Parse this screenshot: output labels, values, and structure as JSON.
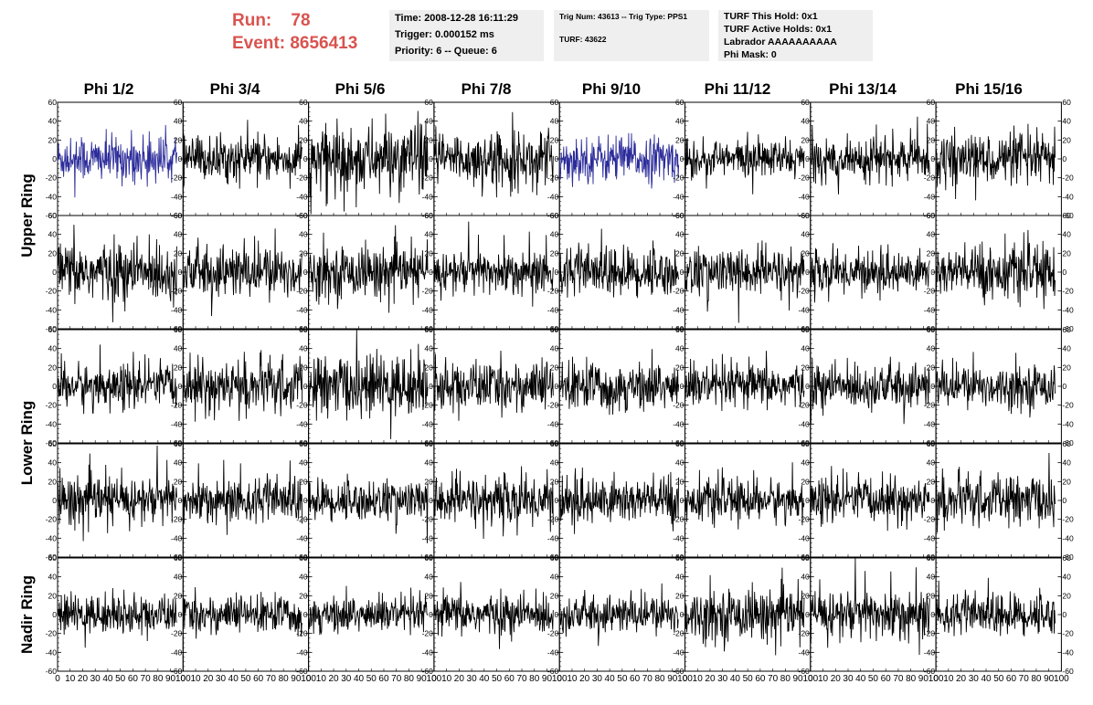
{
  "header": {
    "run_label": "Run:    78",
    "event_label": "Event: 8656413",
    "info1": [
      "Time: 2008-12-28 16:11:29",
      "Trigger: 0.000152 ms",
      "Priority: 6 -- Queue: 6"
    ],
    "info2_line1": "Trig Num: 43613 -- Trig Type: PPS1",
    "info2_line2": "TURF: 43622",
    "info3": [
      "TURF This Hold: 0x1",
      "TURF Active Holds: 0x1",
      "Labrador AAAAAAAAAA",
      "Phi Mask: 0"
    ]
  },
  "colors": {
    "highlight_trace": "#2b2b9a",
    "trace": "#000000",
    "run_text": "#d9534f",
    "info_bg": "#efefef"
  },
  "chart_data": {
    "type": "line",
    "description_of_grid": "5 rows x 8 columns of waveform panels",
    "column_titles": [
      "Phi 1/2",
      "Phi 3/4",
      "Phi 5/6",
      "Phi 7/8",
      "Phi 9/10",
      "Phi 11/12",
      "Phi 13/14",
      "Phi 15/16"
    ],
    "ring_labels": [
      {
        "label": "Upper Ring",
        "rows": [
          0,
          1
        ]
      },
      {
        "label": "Lower Ring",
        "rows": [
          2,
          3
        ]
      },
      {
        "label": "Nadir Ring",
        "rows": [
          4
        ]
      }
    ],
    "xlim": [
      0,
      100
    ],
    "ylim": [
      -60,
      60
    ],
    "y_ticks": [
      "60",
      "40",
      "20",
      "0",
      "-20",
      "-40",
      "-60"
    ],
    "x_ticks": [
      "0",
      "10",
      "20",
      "30",
      "40",
      "50",
      "60",
      "70",
      "80",
      "90",
      "100"
    ],
    "samples_per_trace": 256,
    "trace_x_end": 95,
    "highlighted_panels": [
      [
        0,
        0
      ],
      [
        0,
        4
      ]
    ],
    "panel_amplitudes": [
      [
        12,
        12,
        18,
        14,
        12,
        10,
        11,
        13
      ],
      [
        16,
        14,
        13,
        12,
        13,
        13,
        11,
        14
      ],
      [
        12,
        14,
        16,
        13,
        13,
        12,
        12,
        11
      ],
      [
        13,
        12,
        11,
        13,
        13,
        11,
        12,
        13
      ],
      [
        10,
        10,
        10,
        11,
        10,
        13,
        14,
        11
      ]
    ]
  }
}
